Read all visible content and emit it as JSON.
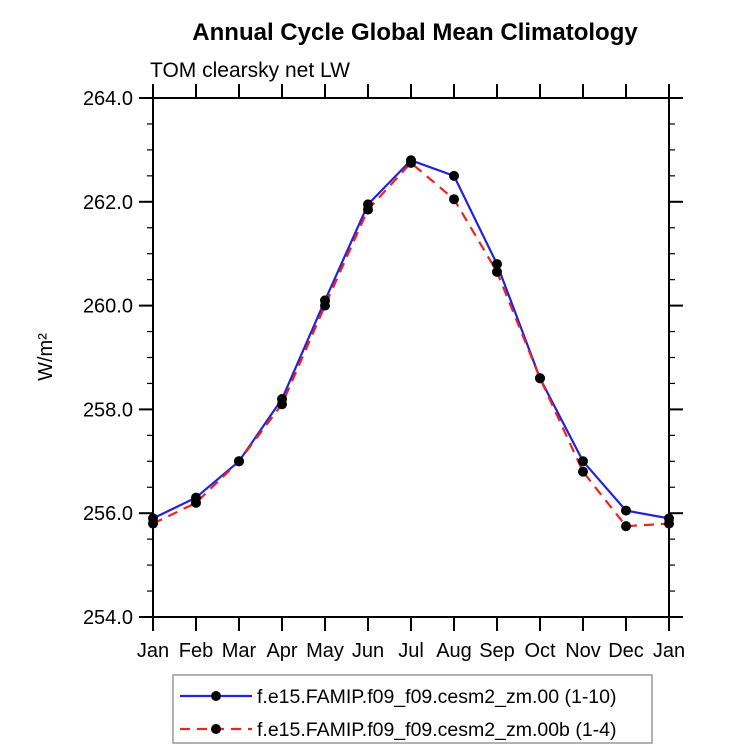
{
  "chart_data": {
    "type": "line",
    "title": "Annual Cycle Global Mean Climatology",
    "subtitle": "TOM clearsky net LW",
    "ylabel": "W/m²",
    "xlabel": "",
    "ylim": [
      254.0,
      264.0
    ],
    "ytick_step": 2.0,
    "yminor_step": 0.5,
    "ytick_labels": [
      "254.0",
      "256.0",
      "258.0",
      "260.0",
      "262.0",
      "264.0"
    ],
    "categories": [
      "Jan",
      "Feb",
      "Mar",
      "Apr",
      "May",
      "Jun",
      "Jul",
      "Aug",
      "Sep",
      "Oct",
      "Nov",
      "Dec",
      "Jan"
    ],
    "grid": false,
    "legend_position": "bottom",
    "axis_color": "#000000",
    "legend_border_color": "#999999",
    "marker_color": "#000000",
    "series": [
      {
        "name": "f.e15.FAMIP.f09_f09.cesm2_zm.00 (1-10)",
        "color": "#2222dd",
        "line_style": "solid",
        "values": [
          255.9,
          256.3,
          257.0,
          258.2,
          260.1,
          261.95,
          262.8,
          262.5,
          260.8,
          258.6,
          257.0,
          256.05,
          255.9
        ]
      },
      {
        "name": "f.e15.FAMIP.f09_f09.cesm2_zm.00b (1-4)",
        "color": "#ee2222",
        "line_style": "dashed",
        "values": [
          255.8,
          256.2,
          257.0,
          258.1,
          260.0,
          261.85,
          262.75,
          262.05,
          260.65,
          258.6,
          256.8,
          255.75,
          255.8
        ]
      }
    ]
  }
}
